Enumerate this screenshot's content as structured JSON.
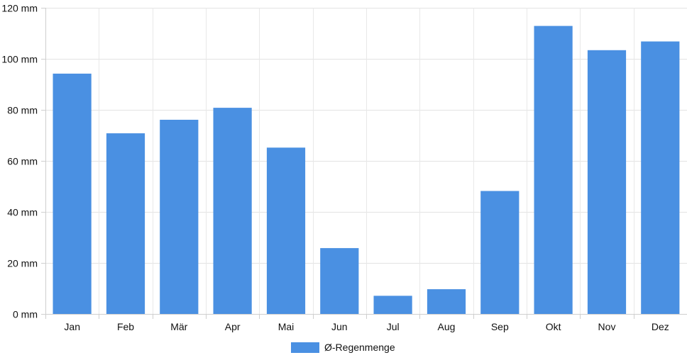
{
  "chart_data": {
    "type": "bar",
    "categories": [
      "Jan",
      "Feb",
      "Mär",
      "Apr",
      "Mai",
      "Jun",
      "Jul",
      "Aug",
      "Sep",
      "Okt",
      "Nov",
      "Dez"
    ],
    "series": [
      {
        "name": "Ø-Regenmenge",
        "values": [
          94.2,
          70.8,
          76.1,
          80.8,
          65.2,
          25.8,
          7.1,
          9.7,
          48.2,
          112.9,
          103.4,
          106.8
        ],
        "color": "#4a90e2"
      }
    ],
    "y_ticks": [
      "0 mm",
      "20 mm",
      "40 mm",
      "60 mm",
      "80 mm",
      "100 mm",
      "120 mm"
    ],
    "ylim": [
      0,
      120
    ],
    "grid": true,
    "legend_position": "bottom-center"
  }
}
